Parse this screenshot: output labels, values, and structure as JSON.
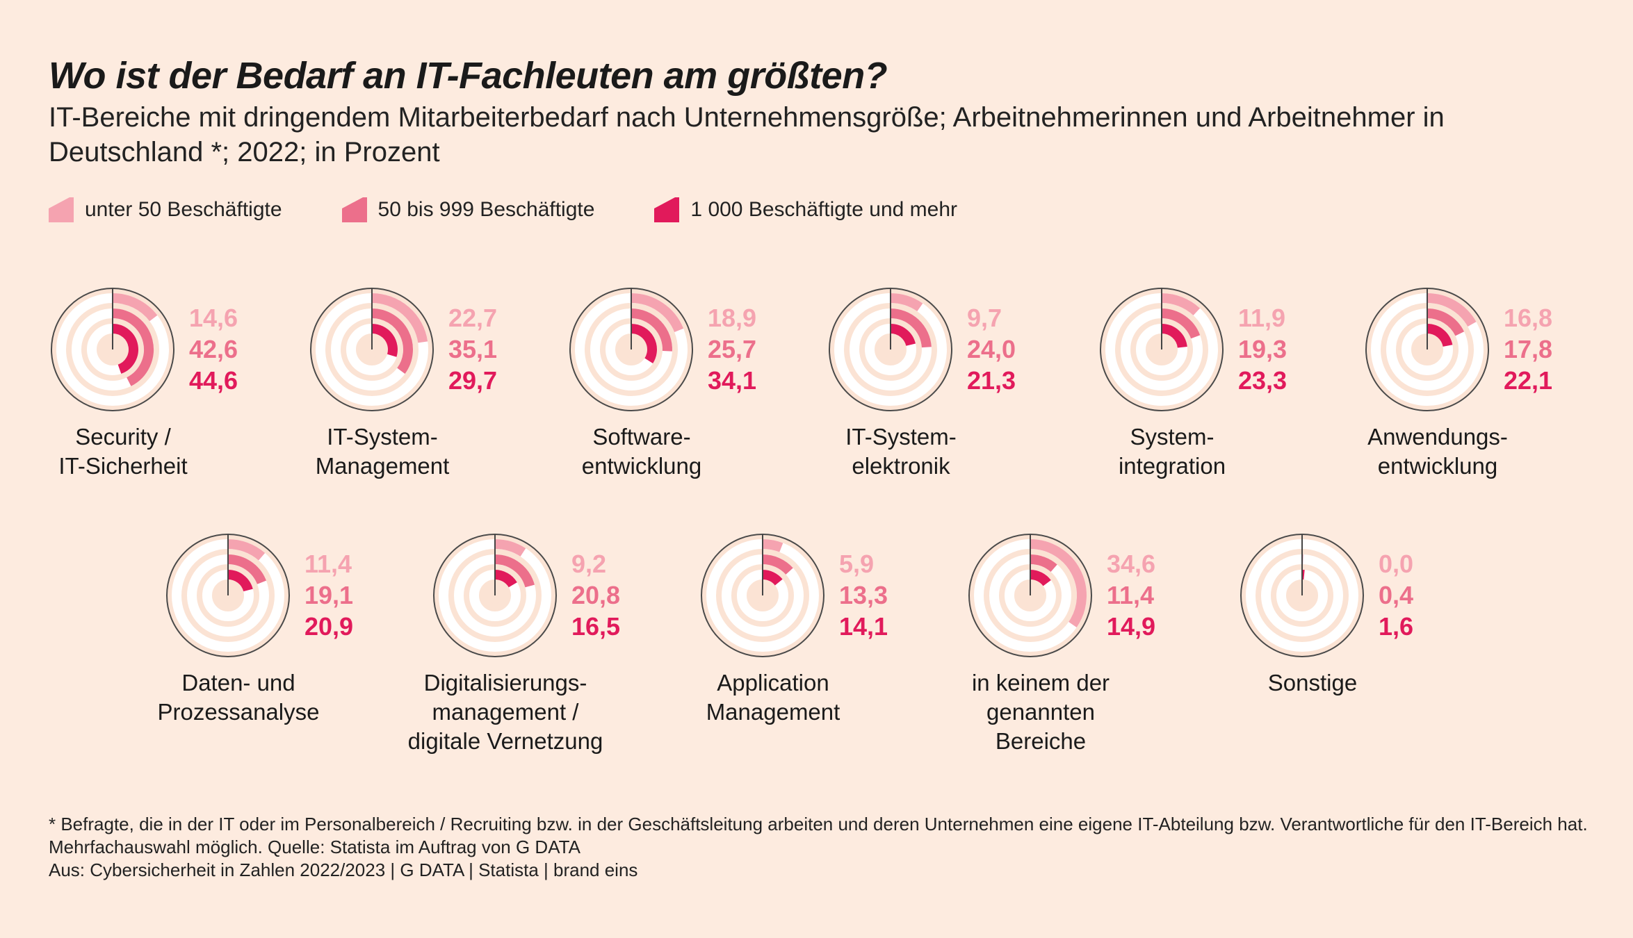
{
  "title": "Wo ist der Bedarf an IT-Fachleuten am größten?",
  "subtitle": "IT-Bereiche mit dringendem Mitarbeiterbedarf nach Unternehmensgröße; Arbeitnehmerinnen und Arbeitnehmer in Deutschland *; 2022; in Prozent",
  "legend": [
    {
      "label": "unter 50 Beschäftigte",
      "color": "#f5a3b0"
    },
    {
      "label": "50 bis 999 Beschäftigte",
      "color": "#ec6f8b"
    },
    {
      "label": "1 000 Beschäftigte und mehr",
      "color": "#e11a5b"
    }
  ],
  "colors": {
    "background": "#fdebdf",
    "ring": "#ffffff",
    "ring_gap": "#fbe3d4",
    "outline": "#4a4a4a"
  },
  "chart_data": {
    "type": "radial bar",
    "unit": "Prozent",
    "series": [
      {
        "name": "unter 50 Beschäftigte",
        "color": "#f5a3b0"
      },
      {
        "name": "50 bis 999 Beschäftigte",
        "color": "#ec6f8b"
      },
      {
        "name": "1 000 Beschäftigte und mehr",
        "color": "#e11a5b"
      }
    ],
    "items": [
      {
        "label_lines": [
          "Security /",
          "IT-Sicherheit"
        ],
        "values": [
          14.6,
          42.6,
          44.6
        ],
        "value_labels": [
          "14,6",
          "42,6",
          "44,6"
        ]
      },
      {
        "label_lines": [
          "IT-System-",
          "Management"
        ],
        "values": [
          22.7,
          35.1,
          29.7
        ],
        "value_labels": [
          "22,7",
          "35,1",
          "29,7"
        ]
      },
      {
        "label_lines": [
          "Software-",
          "entwicklung"
        ],
        "values": [
          18.9,
          25.7,
          34.1
        ],
        "value_labels": [
          "18,9",
          "25,7",
          "34,1"
        ]
      },
      {
        "label_lines": [
          "IT-System-",
          "elektronik"
        ],
        "values": [
          9.7,
          24.0,
          21.3
        ],
        "value_labels": [
          "9,7",
          "24,0",
          "21,3"
        ]
      },
      {
        "label_lines": [
          "System-",
          "integration"
        ],
        "values": [
          11.9,
          19.3,
          23.3
        ],
        "value_labels": [
          "11,9",
          "19,3",
          "23,3"
        ]
      },
      {
        "label_lines": [
          "Anwendungs-",
          "entwicklung"
        ],
        "values": [
          16.8,
          17.8,
          22.1
        ],
        "value_labels": [
          "16,8",
          "17,8",
          "22,1"
        ]
      },
      {
        "label_lines": [
          "Daten- und",
          "Prozessanalyse"
        ],
        "values": [
          11.4,
          19.1,
          20.9
        ],
        "value_labels": [
          "11,4",
          "19,1",
          "20,9"
        ]
      },
      {
        "label_lines": [
          "Digitalisierungs-",
          "management /",
          "digitale Vernetzung"
        ],
        "values": [
          9.2,
          20.8,
          16.5
        ],
        "value_labels": [
          "9,2",
          "20,8",
          "16,5"
        ]
      },
      {
        "label_lines": [
          "Application",
          "Management"
        ],
        "values": [
          5.9,
          13.3,
          14.1
        ],
        "value_labels": [
          "5,9",
          "13,3",
          "14,1"
        ]
      },
      {
        "label_lines": [
          "in keinem der",
          "genannten",
          "Bereiche"
        ],
        "values": [
          34.6,
          11.4,
          14.9
        ],
        "value_labels": [
          "34,6",
          "11,4",
          "14,9"
        ]
      },
      {
        "label_lines": [
          "Sonstige"
        ],
        "values": [
          0.0,
          0.4,
          1.6
        ],
        "value_labels": [
          "0,0",
          "0,4",
          "1,6"
        ]
      }
    ]
  },
  "footnote": {
    "line1": "* Befragte, die in der IT oder im Personalbereich / Recruiting bzw. in der Geschäftsleitung arbeiten und deren Unternehmen eine eigene IT-Abteilung bzw. Verantwortliche für den IT-Bereich hat. Mehrfachauswahl möglich. Quelle: Statista im Auftrag von G DATA",
    "line2": "Aus: Cybersicherheit in Zahlen 2022/2023 | G DATA | Statista | brand eins"
  }
}
